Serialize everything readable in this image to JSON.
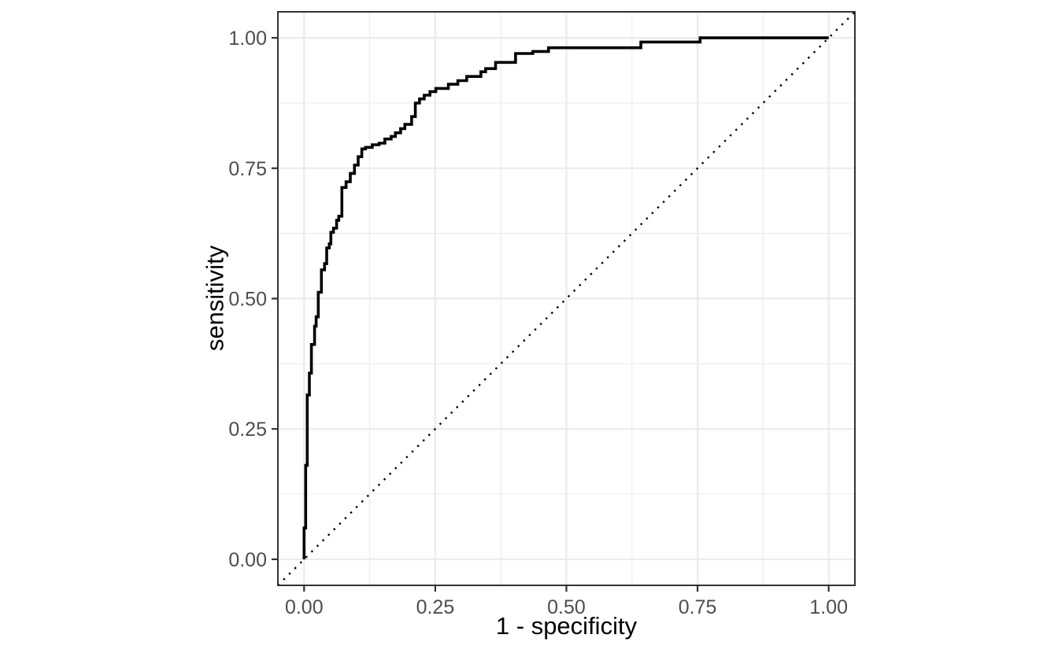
{
  "figure": {
    "background": "#ffffff",
    "title": ""
  },
  "chart_data": {
    "type": "line",
    "variant": "roc_step_curve",
    "title": "",
    "xlabel": "1 - specificity",
    "ylabel": "sensitivity",
    "xlim": [
      -0.05,
      1.05
    ],
    "ylim": [
      -0.05,
      1.05
    ],
    "x_tick_values": [
      0,
      0.25,
      0.5,
      0.75,
      1
    ],
    "x_tick_labels": [
      "0.00",
      "0.25",
      "0.50",
      "0.75",
      "1.00"
    ],
    "y_tick_values": [
      0,
      0.25,
      0.5,
      0.75,
      1
    ],
    "y_tick_labels": [
      "0.00",
      "0.25",
      "0.50",
      "0.75",
      "1.00"
    ],
    "minor_breaks": [
      0.125,
      0.375,
      0.625,
      0.875
    ],
    "grid": "major-and-minor",
    "legend_position": "none",
    "series": [
      {
        "name": "roc-curve",
        "style": "solid-step",
        "color": "#000000",
        "linewidth": 3.6,
        "points": [
          [
            0,
            0
          ],
          [
            0,
            0.06
          ],
          [
            0.003,
            0.06
          ],
          [
            0.003,
            0.18
          ],
          [
            0.006,
            0.18
          ],
          [
            0.006,
            0.315
          ],
          [
            0.01,
            0.315
          ],
          [
            0.01,
            0.357
          ],
          [
            0.014,
            0.357
          ],
          [
            0.014,
            0.412
          ],
          [
            0.02,
            0.412
          ],
          [
            0.02,
            0.447
          ],
          [
            0.023,
            0.447
          ],
          [
            0.023,
            0.465
          ],
          [
            0.027,
            0.465
          ],
          [
            0.027,
            0.512
          ],
          [
            0.033,
            0.512
          ],
          [
            0.033,
            0.555
          ],
          [
            0.039,
            0.555
          ],
          [
            0.039,
            0.567
          ],
          [
            0.043,
            0.567
          ],
          [
            0.043,
            0.597
          ],
          [
            0.048,
            0.597
          ],
          [
            0.048,
            0.605
          ],
          [
            0.051,
            0.605
          ],
          [
            0.051,
            0.627
          ],
          [
            0.056,
            0.627
          ],
          [
            0.056,
            0.635
          ],
          [
            0.062,
            0.635
          ],
          [
            0.062,
            0.65
          ],
          [
            0.066,
            0.65
          ],
          [
            0.066,
            0.658
          ],
          [
            0.072,
            0.658
          ],
          [
            0.072,
            0.713
          ],
          [
            0.08,
            0.713
          ],
          [
            0.08,
            0.724
          ],
          [
            0.088,
            0.724
          ],
          [
            0.088,
            0.74
          ],
          [
            0.096,
            0.74
          ],
          [
            0.096,
            0.756
          ],
          [
            0.103,
            0.756
          ],
          [
            0.103,
            0.772
          ],
          [
            0.11,
            0.772
          ],
          [
            0.11,
            0.787
          ],
          [
            0.117,
            0.787
          ],
          [
            0.117,
            0.79
          ],
          [
            0.13,
            0.79
          ],
          [
            0.13,
            0.795
          ],
          [
            0.143,
            0.795
          ],
          [
            0.143,
            0.798
          ],
          [
            0.154,
            0.798
          ],
          [
            0.154,
            0.806
          ],
          [
            0.166,
            0.806
          ],
          [
            0.166,
            0.811
          ],
          [
            0.174,
            0.811
          ],
          [
            0.174,
            0.818
          ],
          [
            0.184,
            0.818
          ],
          [
            0.184,
            0.826
          ],
          [
            0.192,
            0.826
          ],
          [
            0.192,
            0.834
          ],
          [
            0.205,
            0.834
          ],
          [
            0.205,
            0.849
          ],
          [
            0.212,
            0.849
          ],
          [
            0.212,
            0.875
          ],
          [
            0.22,
            0.875
          ],
          [
            0.22,
            0.883
          ],
          [
            0.229,
            0.883
          ],
          [
            0.229,
            0.89
          ],
          [
            0.24,
            0.89
          ],
          [
            0.24,
            0.897
          ],
          [
            0.251,
            0.897
          ],
          [
            0.251,
            0.903
          ],
          [
            0.275,
            0.903
          ],
          [
            0.275,
            0.911
          ],
          [
            0.293,
            0.911
          ],
          [
            0.293,
            0.918
          ],
          [
            0.31,
            0.918
          ],
          [
            0.31,
            0.926
          ],
          [
            0.337,
            0.926
          ],
          [
            0.337,
            0.935
          ],
          [
            0.346,
            0.935
          ],
          [
            0.346,
            0.941
          ],
          [
            0.365,
            0.941
          ],
          [
            0.365,
            0.953
          ],
          [
            0.403,
            0.953
          ],
          [
            0.403,
            0.97
          ],
          [
            0.436,
            0.97
          ],
          [
            0.436,
            0.974
          ],
          [
            0.466,
            0.974
          ],
          [
            0.466,
            0.981
          ],
          [
            0.642,
            0.981
          ],
          [
            0.642,
            0.992
          ],
          [
            0.755,
            0.992
          ],
          [
            0.755,
            1
          ],
          [
            1,
            1
          ]
        ]
      },
      {
        "name": "chance-diagonal",
        "style": "dotted",
        "color": "#000000",
        "linewidth": 2.4,
        "points": [
          [
            -0.05,
            -0.05
          ],
          [
            1.05,
            1.05
          ]
        ]
      }
    ]
  },
  "style": {
    "panel_background": "#ffffff",
    "panel_border_color": "#333333",
    "grid_major_color": "#ebebeb",
    "grid_minor_color": "#ebebeb",
    "tick_mark_color": "#333333",
    "tick_label_color": "#4d4d4d",
    "axis_title_color": "#000000"
  }
}
